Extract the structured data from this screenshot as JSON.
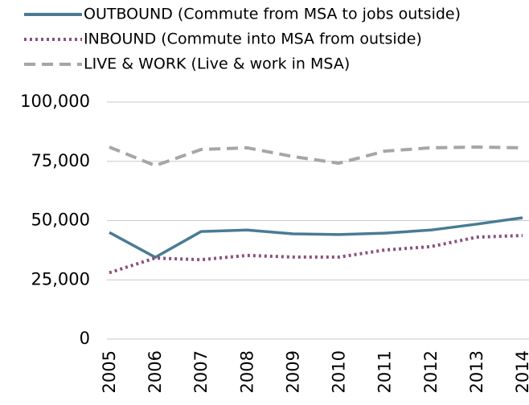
{
  "chart_data": {
    "type": "line",
    "categories": [
      "2005",
      "2006",
      "2007",
      "2008",
      "2009",
      "2010",
      "2011",
      "2012",
      "2013",
      "2014"
    ],
    "series": [
      {
        "name": "OUTBOUND (Commute from MSA to jobs outside)",
        "color": "#4a7b94",
        "style": "solid",
        "values": [
          45000,
          34500,
          45400,
          46000,
          44400,
          44100,
          44700,
          46000,
          48500,
          51200
        ]
      },
      {
        "name": "INBOUND (Commute into MSA from outside)",
        "color": "#8b4f7e",
        "style": "dotted",
        "values": [
          28000,
          34200,
          33500,
          35300,
          34600,
          34600,
          37600,
          39000,
          43000,
          43700
        ]
      },
      {
        "name": "LIVE & WORK (Live & work in MSA)",
        "color": "#a6a6a6",
        "style": "dashed",
        "values": [
          81000,
          73200,
          80000,
          80700,
          77000,
          74200,
          79300,
          80700,
          81000,
          80700
        ]
      }
    ],
    "ylim": [
      0,
      100000
    ],
    "yticks": [
      0,
      {
        "value": 25000,
        "label": "25,000"
      },
      {
        "value": 50000,
        "label": "50,000"
      },
      {
        "value": 75000,
        "label": "75,000"
      },
      {
        "value": 100000,
        "label": "100,000"
      }
    ],
    "grid": true,
    "legend": "top"
  }
}
